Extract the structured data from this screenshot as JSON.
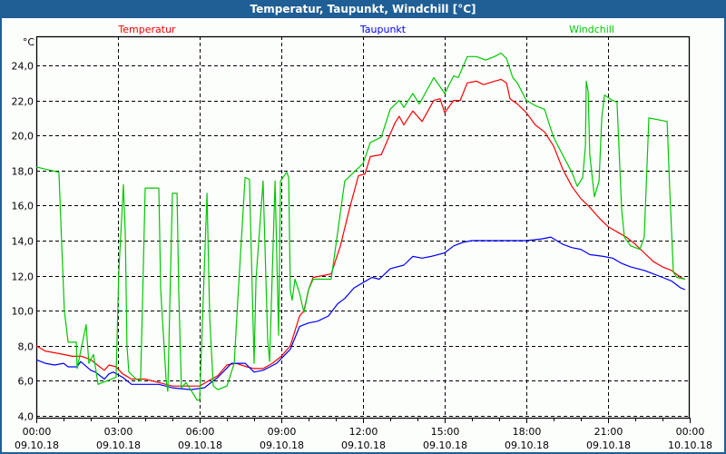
{
  "window": {
    "title": "Temperatur, Taupunkt, Windchill [°C]"
  },
  "chart_data": {
    "type": "line",
    "title": "Temperatur, Taupunkt, Windchill [°C]",
    "ylabel": "°C",
    "xlabel": "",
    "xlim_hours": [
      0,
      24
    ],
    "ylim": [
      4,
      25.6
    ],
    "grid": true,
    "legend_placement": "top",
    "y_ticks": [
      "4,0",
      "6,0",
      "8,0",
      "10,0",
      "12,0",
      "14,0",
      "16,0",
      "18,0",
      "20,0",
      "22,0",
      "24,0"
    ],
    "y_tick_values": [
      4,
      6,
      8,
      10,
      12,
      14,
      16,
      18,
      20,
      22,
      24
    ],
    "x_ticks": [
      {
        "hour": 0,
        "time": "00:00",
        "date": "09.10.18"
      },
      {
        "hour": 3,
        "time": "03:00",
        "date": "09.10.18"
      },
      {
        "hour": 6,
        "time": "06:00",
        "date": "09.10.18"
      },
      {
        "hour": 9,
        "time": "09:00",
        "date": "09.10.18"
      },
      {
        "hour": 12,
        "time": "12:00",
        "date": "09.10.18"
      },
      {
        "hour": 15,
        "time": "15:00",
        "date": "09.10.18"
      },
      {
        "hour": 18,
        "time": "18:00",
        "date": "09.10.18"
      },
      {
        "hour": 21,
        "time": "21:00",
        "date": "09.10.18"
      },
      {
        "hour": 24,
        "time": "00:00",
        "date": "10.10.18"
      }
    ],
    "series": [
      {
        "name": "Temperatur",
        "color": "#ff0000",
        "points": [
          [
            0,
            8.0
          ],
          [
            0.33,
            7.7
          ],
          [
            0.67,
            7.6
          ],
          [
            1,
            7.5
          ],
          [
            1.33,
            7.4
          ],
          [
            1.67,
            7.4
          ],
          [
            2,
            7.2
          ],
          [
            2.33,
            6.8
          ],
          [
            2.5,
            6.6
          ],
          [
            2.67,
            6.9
          ],
          [
            2.93,
            6.8
          ],
          [
            3.17,
            6.4
          ],
          [
            3.5,
            6.1
          ],
          [
            4,
            6.1
          ],
          [
            4.5,
            5.9
          ],
          [
            5,
            5.7
          ],
          [
            5.5,
            5.7
          ],
          [
            6,
            5.7
          ],
          [
            6.33,
            6.0
          ],
          [
            6.67,
            6.3
          ],
          [
            7,
            6.9
          ],
          [
            7.33,
            7.0
          ],
          [
            7.73,
            6.8
          ],
          [
            8,
            6.7
          ],
          [
            8.33,
            6.7
          ],
          [
            8.67,
            7.0
          ],
          [
            9,
            7.4
          ],
          [
            9.33,
            8.0
          ],
          [
            9.67,
            9.7
          ],
          [
            9.83,
            10.0
          ],
          [
            10,
            11.2
          ],
          [
            10.17,
            11.9
          ],
          [
            10.5,
            12.0
          ],
          [
            10.83,
            12.1
          ],
          [
            11.17,
            13.7
          ],
          [
            11.5,
            15.8
          ],
          [
            11.83,
            17.7
          ],
          [
            12.07,
            17.8
          ],
          [
            12.27,
            18.8
          ],
          [
            12.67,
            18.9
          ],
          [
            13.17,
            20.7
          ],
          [
            13.33,
            21.1
          ],
          [
            13.5,
            20.6
          ],
          [
            13.83,
            21.4
          ],
          [
            14.17,
            20.8
          ],
          [
            14.6,
            22.0
          ],
          [
            14.83,
            22.1
          ],
          [
            15,
            21.3
          ],
          [
            15.33,
            22.0
          ],
          [
            15.57,
            22.0
          ],
          [
            15.83,
            23.0
          ],
          [
            16.17,
            23.1
          ],
          [
            16.43,
            22.9
          ],
          [
            16.83,
            23.1
          ],
          [
            17.07,
            23.2
          ],
          [
            17.27,
            23.0
          ],
          [
            17.4,
            22.1
          ],
          [
            17.67,
            21.8
          ],
          [
            18,
            21.3
          ],
          [
            18.33,
            20.6
          ],
          [
            18.67,
            20.2
          ],
          [
            19,
            19.4
          ],
          [
            19.33,
            18.1
          ],
          [
            19.67,
            17.1
          ],
          [
            20,
            16.4
          ],
          [
            20.33,
            15.9
          ],
          [
            20.67,
            15.3
          ],
          [
            21,
            14.8
          ],
          [
            21.33,
            14.5
          ],
          [
            21.67,
            14.2
          ],
          [
            22,
            13.8
          ],
          [
            22.33,
            13.3
          ],
          [
            22.67,
            12.8
          ],
          [
            23,
            12.5
          ],
          [
            23.33,
            12.3
          ],
          [
            23.67,
            11.9
          ],
          [
            23.83,
            11.8
          ]
        ]
      },
      {
        "name": "Taupunkt",
        "color": "#0000ff",
        "points": [
          [
            0,
            7.2
          ],
          [
            0.33,
            7.0
          ],
          [
            0.67,
            6.9
          ],
          [
            1,
            7.0
          ],
          [
            1.17,
            6.8
          ],
          [
            1.5,
            6.8
          ],
          [
            1.63,
            7.1
          ],
          [
            2,
            6.6
          ],
          [
            2.17,
            6.5
          ],
          [
            2.5,
            6.1
          ],
          [
            2.67,
            6.4
          ],
          [
            2.83,
            6.5
          ],
          [
            3.17,
            6.2
          ],
          [
            3.5,
            5.8
          ],
          [
            4,
            5.8
          ],
          [
            4.5,
            5.8
          ],
          [
            5,
            5.6
          ],
          [
            5.67,
            5.5
          ],
          [
            6.17,
            5.6
          ],
          [
            6.67,
            6.2
          ],
          [
            7.17,
            7.0
          ],
          [
            7.67,
            7.0
          ],
          [
            8,
            6.5
          ],
          [
            8.33,
            6.6
          ],
          [
            8.83,
            7.0
          ],
          [
            9.33,
            7.8
          ],
          [
            9.67,
            9.1
          ],
          [
            10,
            9.3
          ],
          [
            10.33,
            9.4
          ],
          [
            10.73,
            9.7
          ],
          [
            11.07,
            10.4
          ],
          [
            11.33,
            10.7
          ],
          [
            11.67,
            11.3
          ],
          [
            12,
            11.6
          ],
          [
            12.33,
            11.9
          ],
          [
            12.6,
            11.8
          ],
          [
            13,
            12.4
          ],
          [
            13.5,
            12.6
          ],
          [
            13.83,
            13.1
          ],
          [
            14.17,
            13.0
          ],
          [
            14.5,
            13.1
          ],
          [
            15,
            13.3
          ],
          [
            15.33,
            13.7
          ],
          [
            15.67,
            13.9
          ],
          [
            16,
            14.0
          ],
          [
            16.67,
            14.0
          ],
          [
            17.33,
            14.0
          ],
          [
            18,
            14.0
          ],
          [
            18.57,
            14.1
          ],
          [
            18.9,
            14.2
          ],
          [
            19.33,
            13.8
          ],
          [
            19.67,
            13.6
          ],
          [
            20,
            13.5
          ],
          [
            20.33,
            13.2
          ],
          [
            20.83,
            13.1
          ],
          [
            21.17,
            13.0
          ],
          [
            21.5,
            12.7
          ],
          [
            21.83,
            12.5
          ],
          [
            22.33,
            12.3
          ],
          [
            22.67,
            12.1
          ],
          [
            23,
            11.9
          ],
          [
            23.33,
            11.7
          ],
          [
            23.67,
            11.3
          ],
          [
            23.83,
            11.2
          ]
        ]
      },
      {
        "name": "Windchill",
        "color": "#00c800",
        "points": [
          [
            0,
            18.2
          ],
          [
            0.83,
            17.9
          ],
          [
            1.03,
            10.0
          ],
          [
            1.17,
            8.2
          ],
          [
            1.47,
            8.2
          ],
          [
            1.5,
            6.7
          ],
          [
            1.83,
            9.2
          ],
          [
            1.93,
            7.0
          ],
          [
            2.1,
            7.5
          ],
          [
            2.27,
            5.8
          ],
          [
            2.93,
            6.2
          ],
          [
            3.03,
            12.2
          ],
          [
            3.2,
            17.2
          ],
          [
            3.27,
            14.3
          ],
          [
            3.33,
            8.0
          ],
          [
            3.4,
            6.5
          ],
          [
            3.67,
            6.1
          ],
          [
            3.83,
            6.0
          ],
          [
            3.9,
            10.4
          ],
          [
            4,
            17.0
          ],
          [
            4.5,
            17.0
          ],
          [
            4.57,
            11.2
          ],
          [
            4.77,
            6.0
          ],
          [
            4.83,
            5.4
          ],
          [
            5,
            16.7
          ],
          [
            5.17,
            16.7
          ],
          [
            5.23,
            11.2
          ],
          [
            5.33,
            5.6
          ],
          [
            5.5,
            5.9
          ],
          [
            5.67,
            5.5
          ],
          [
            5.9,
            4.9
          ],
          [
            6,
            4.9
          ],
          [
            6.27,
            16.7
          ],
          [
            6.37,
            9.6
          ],
          [
            6.5,
            5.7
          ],
          [
            6.67,
            5.5
          ],
          [
            7,
            5.7
          ],
          [
            7.27,
            7.0
          ],
          [
            7.4,
            10.6
          ],
          [
            7.67,
            17.6
          ],
          [
            7.83,
            17.5
          ],
          [
            8,
            7.0
          ],
          [
            8.07,
            11.8
          ],
          [
            8.33,
            17.4
          ],
          [
            8.5,
            8.3
          ],
          [
            8.57,
            7.1
          ],
          [
            8.77,
            17.4
          ],
          [
            8.9,
            8.6
          ],
          [
            8.97,
            17.4
          ],
          [
            9.2,
            17.9
          ],
          [
            9.27,
            17.6
          ],
          [
            9.33,
            11.2
          ],
          [
            9.4,
            10.6
          ],
          [
            9.5,
            11.8
          ],
          [
            9.67,
            11.0
          ],
          [
            9.83,
            9.9
          ],
          [
            10,
            11.2
          ],
          [
            10.17,
            11.8
          ],
          [
            10.83,
            11.8
          ],
          [
            11,
            13.7
          ],
          [
            11.33,
            17.4
          ],
          [
            12,
            18.4
          ],
          [
            12.27,
            19.6
          ],
          [
            12.67,
            19.9
          ],
          [
            13,
            21.5
          ],
          [
            13.33,
            22.0
          ],
          [
            13.5,
            21.6
          ],
          [
            13.83,
            22.4
          ],
          [
            14.07,
            21.8
          ],
          [
            14.6,
            23.3
          ],
          [
            15,
            22.4
          ],
          [
            15.33,
            23.4
          ],
          [
            15.5,
            23.3
          ],
          [
            15.83,
            24.5
          ],
          [
            16.17,
            24.5
          ],
          [
            16.5,
            24.3
          ],
          [
            16.83,
            24.5
          ],
          [
            17.07,
            24.7
          ],
          [
            17.27,
            24.4
          ],
          [
            17.5,
            23.3
          ],
          [
            17.67,
            23.0
          ],
          [
            18,
            22.0
          ],
          [
            18.33,
            21.7
          ],
          [
            18.67,
            21.5
          ],
          [
            18.83,
            20.7
          ],
          [
            19,
            19.9
          ],
          [
            19.33,
            18.9
          ],
          [
            19.67,
            17.9
          ],
          [
            19.87,
            17.1
          ],
          [
            20.07,
            17.6
          ],
          [
            20.17,
            19.4
          ],
          [
            20.2,
            23.1
          ],
          [
            20.27,
            22.5
          ],
          [
            20.33,
            18.9
          ],
          [
            20.5,
            16.5
          ],
          [
            20.67,
            17.4
          ],
          [
            20.77,
            21.0
          ],
          [
            20.87,
            22.3
          ],
          [
            21.17,
            22.0
          ],
          [
            21.33,
            21.9
          ],
          [
            21.5,
            15.8
          ],
          [
            21.6,
            14.2
          ],
          [
            21.83,
            13.7
          ],
          [
            22.17,
            13.5
          ],
          [
            22.33,
            14.2
          ],
          [
            22.5,
            21.0
          ],
          [
            23.17,
            20.8
          ],
          [
            23.27,
            16.8
          ],
          [
            23.4,
            12.2
          ],
          [
            23.53,
            11.9
          ],
          [
            23.83,
            11.8
          ]
        ]
      }
    ]
  }
}
